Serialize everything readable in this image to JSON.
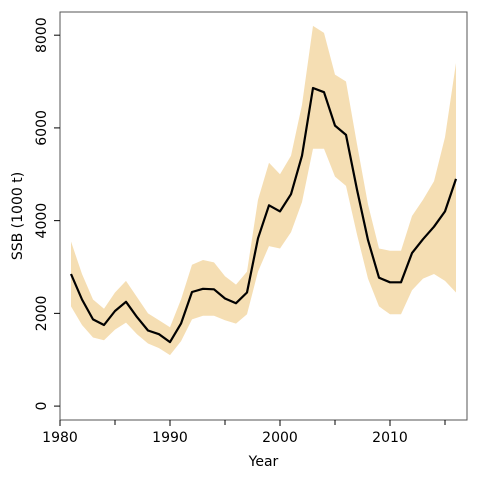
{
  "chart_data": {
    "type": "line",
    "title": "",
    "xlabel": "Year",
    "ylabel": "SSB (1000 t)",
    "xlim": [
      1980,
      2017
    ],
    "ylim": [
      -300,
      8500
    ],
    "x_ticks": [
      1980,
      1990,
      2000,
      2010
    ],
    "x_minor_ticks": [
      1985,
      1995,
      2005,
      2015
    ],
    "y_ticks": [
      0,
      2000,
      4000,
      6000,
      8000
    ],
    "grid": false,
    "legend": "none",
    "colors": {
      "band": "#f5deb3",
      "line": "#000000",
      "frame": "#555555"
    },
    "series": [
      {
        "kind": "band",
        "x": [
          1981,
          1982,
          1983,
          1984,
          1985,
          1986,
          1987,
          1988,
          1989,
          1990,
          1991,
          1992,
          1993,
          1994,
          1995,
          1996,
          1997,
          1998,
          1999,
          2000,
          2001,
          2002,
          2003,
          2004,
          2005,
          2006,
          2007,
          2008,
          2009,
          2010,
          2011,
          2012,
          2013,
          2014,
          2015,
          2016
        ],
        "lower": [
          2150,
          1750,
          1480,
          1420,
          1650,
          1800,
          1550,
          1350,
          1250,
          1100,
          1400,
          1870,
          1950,
          1950,
          1850,
          1780,
          1980,
          2900,
          3450,
          3400,
          3750,
          4400,
          5550,
          5550,
          4950,
          4750,
          3700,
          2750,
          2150,
          1980,
          1980,
          2500,
          2750,
          2850,
          2700,
          2450
        ],
        "upper": [
          3550,
          2850,
          2300,
          2100,
          2450,
          2700,
          2350,
          2000,
          1850,
          1700,
          2300,
          3050,
          3150,
          3100,
          2800,
          2620,
          2900,
          4450,
          5250,
          5000,
          5400,
          6500,
          8200,
          8050,
          7150,
          7000,
          5650,
          4350,
          3400,
          3350,
          3350,
          4100,
          4450,
          4850,
          5800,
          7400
        ]
      },
      {
        "kind": "line",
        "x": [
          1981,
          1982,
          1983,
          1984,
          1985,
          1986,
          1987,
          1988,
          1989,
          1990,
          1991,
          1992,
          1993,
          1994,
          1995,
          1996,
          1997,
          1998,
          1999,
          2000,
          2001,
          2002,
          2003,
          2004,
          2005,
          2006,
          2007,
          2008,
          2009,
          2010,
          2011,
          2012,
          2013,
          2014,
          2015,
          2016
        ],
        "values": [
          2850,
          2300,
          1870,
          1750,
          2050,
          2250,
          1920,
          1630,
          1550,
          1380,
          1780,
          2460,
          2530,
          2520,
          2320,
          2220,
          2450,
          3620,
          4330,
          4200,
          4570,
          5400,
          6860,
          6770,
          6050,
          5850,
          4670,
          3580,
          2770,
          2670,
          2670,
          3300,
          3600,
          3870,
          4200,
          4900
        ]
      }
    ]
  }
}
